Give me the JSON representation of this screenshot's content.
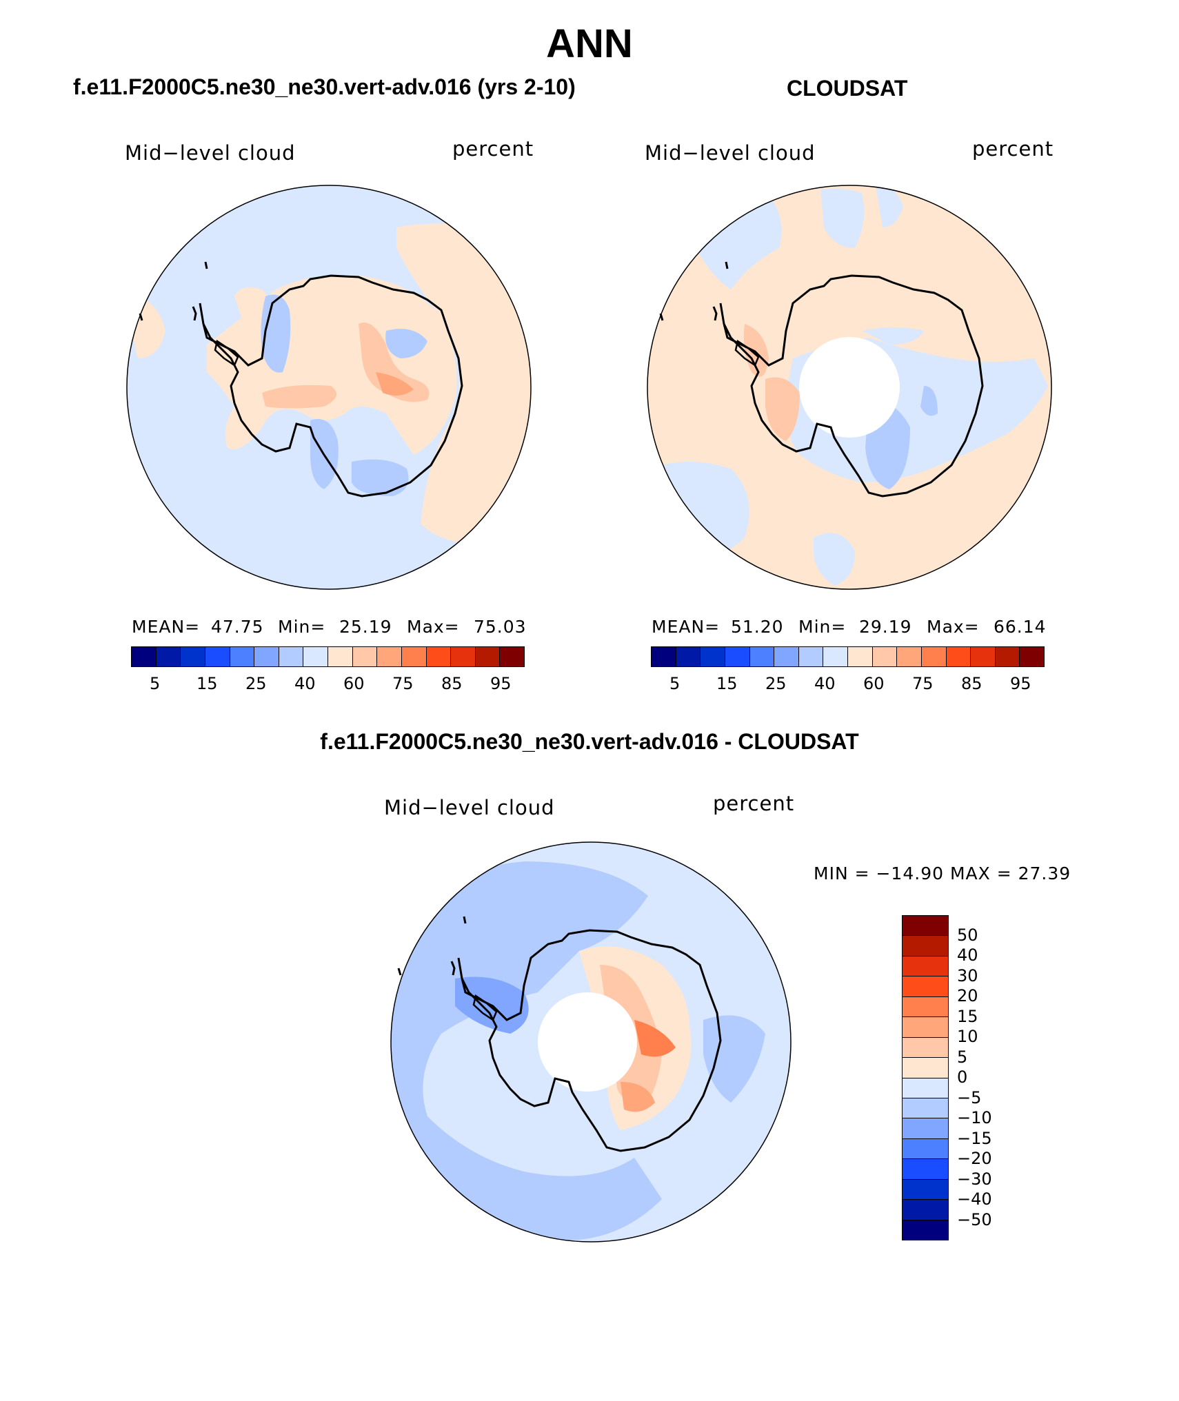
{
  "page_title": "ANN",
  "panels": [
    {
      "subtitle": "f.e11.F2000C5.ne30_ne30.vert-adv.016 (yrs 2-10)",
      "left_label": "Mid−level cloud",
      "right_label": "percent",
      "mean_label": "MEAN=",
      "mean": "47.75",
      "min_label": "Min=",
      "min": "25.19",
      "max_label": "Max=",
      "max": "75.03"
    },
    {
      "subtitle": "CLOUDSAT",
      "left_label": "Mid−level cloud",
      "right_label": "percent",
      "mean_label": "MEAN=",
      "mean": "51.20",
      "min_label": "Min=",
      "min": "29.19",
      "max_label": "Max=",
      "max": "66.14"
    }
  ],
  "diff_panel": {
    "subtitle": "f.e11.F2000C5.ne30_ne30.vert-adv.016 - CLOUDSAT",
    "left_label": "Mid−level cloud",
    "right_label": "percent",
    "minmax_text": "MIN = −14.90 MAX =   27.39"
  },
  "colorbar_levels": [
    "5",
    "15",
    "25",
    "40",
    "60",
    "75",
    "85",
    "95"
  ],
  "diff_colorbar_levels": [
    "50",
    "40",
    "30",
    "20",
    "15",
    "10",
    "5",
    "0",
    "−5",
    "−10",
    "−15",
    "−20",
    "−30",
    "−40",
    "−50"
  ],
  "colors": {
    "scale": [
      "#00007f",
      "#0019a6",
      "#0033cc",
      "#1a4dff",
      "#4d80ff",
      "#80a6ff",
      "#b3ccff",
      "#d9e8ff",
      "#ffe6d1",
      "#ffc8a8",
      "#ffa67a",
      "#ff7f4d",
      "#ff4d1a",
      "#e6330d",
      "#b31a00",
      "#7f0000"
    ],
    "land_outline": "#000000"
  }
}
